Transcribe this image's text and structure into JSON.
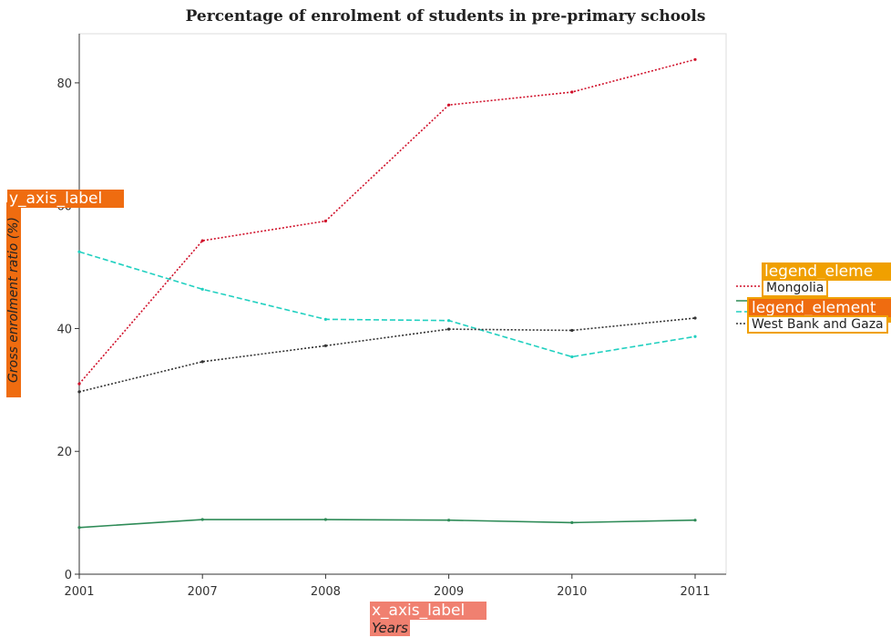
{
  "title": "Percentage of enrolment of students in pre-primary schools",
  "chart_data": {
    "type": "line",
    "categories": [
      "2001",
      "2007",
      "2008",
      "2009",
      "2010",
      "2011"
    ],
    "xlabel": "Years",
    "ylabel": "Gross enrolment ratio (%)",
    "ylim": [
      0,
      88
    ],
    "yticks": [
      0,
      20,
      40,
      60,
      80
    ],
    "grid": false,
    "legend_position": "right",
    "series": [
      {
        "name": "Mongolia",
        "color": "#d0102a",
        "dash": "dotted",
        "values": [
          31.0,
          54.3,
          57.5,
          76.4,
          78.5,
          83.8
        ]
      },
      {
        "name": "",
        "color": "#20d0c0",
        "dash": "dashed",
        "values": [
          52.5,
          46.4,
          41.5,
          41.3,
          35.4,
          38.7
        ]
      },
      {
        "name": "",
        "color": "#2e8b57",
        "dash": "solid",
        "values": [
          7.6,
          8.9,
          8.9,
          8.8,
          8.4,
          8.8
        ]
      },
      {
        "name": "West Bank and Gaza",
        "color": "#333333",
        "dash": "dotted",
        "values": [
          29.7,
          34.6,
          37.2,
          39.9,
          39.7,
          41.7
        ]
      }
    ]
  },
  "overlays": {
    "y_axis_label_tag": "y_axis_label",
    "x_axis_label_tag": "x_axis_label",
    "legend_tag": "legend_eleme",
    "legend_tag_2": "legend_eleme",
    "legend_tag_3": "legend_element"
  },
  "colors": {
    "orange_tag": "#ef6c10",
    "salmon_tag": "#f08070",
    "legend_border": "#f0a000"
  }
}
